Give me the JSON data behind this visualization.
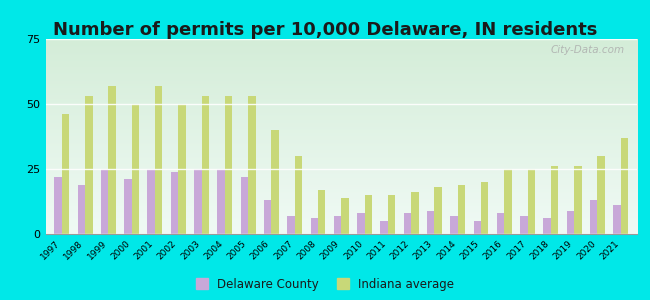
{
  "title": "Number of permits per 10,000 Delaware, IN residents",
  "years": [
    1997,
    1998,
    1999,
    2000,
    2001,
    2002,
    2003,
    2004,
    2005,
    2006,
    2007,
    2008,
    2009,
    2010,
    2011,
    2012,
    2013,
    2014,
    2015,
    2016,
    2017,
    2018,
    2019,
    2020,
    2021
  ],
  "delaware_county": [
    22,
    19,
    25,
    21,
    25,
    24,
    25,
    25,
    22,
    13,
    7,
    6,
    7,
    8,
    5,
    8,
    9,
    7,
    5,
    8,
    7,
    6,
    9,
    13,
    11
  ],
  "indiana_avg": [
    46,
    53,
    57,
    50,
    57,
    50,
    53,
    53,
    53,
    40,
    30,
    17,
    14,
    15,
    15,
    16,
    18,
    19,
    20,
    25,
    25,
    26,
    26,
    30,
    37
  ],
  "delaware_color": "#c8a8d8",
  "indiana_color": "#c8d878",
  "background_outer": "#00e8e8",
  "background_inner": "#e8f5ee",
  "ylim": [
    0,
    75
  ],
  "yticks": [
    0,
    25,
    50,
    75
  ],
  "bar_width": 0.32,
  "title_fontsize": 13,
  "legend_labels": [
    "Delaware County",
    "Indiana average"
  ],
  "watermark": "City-Data.com"
}
